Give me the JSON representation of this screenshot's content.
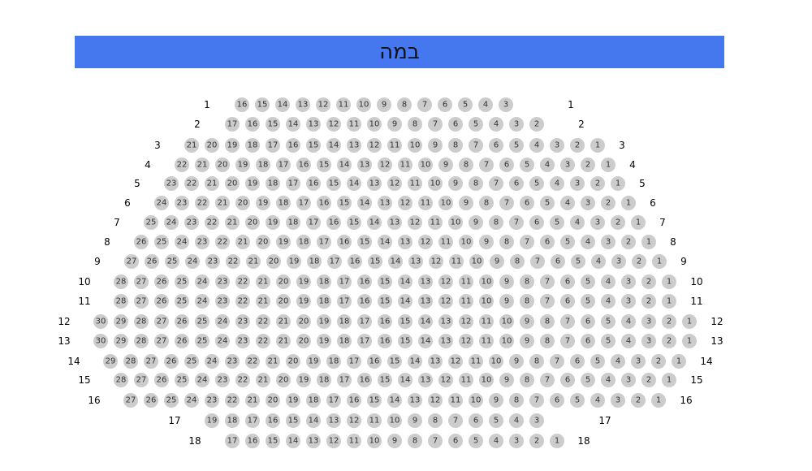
{
  "stage": {
    "label": "במה",
    "color": "#4577ee"
  },
  "seat_color": "#cccccc",
  "rows": [
    {
      "row": "1",
      "from": 16,
      "to": 3
    },
    {
      "row": "2",
      "from": 17,
      "to": 2
    },
    {
      "row": "3",
      "from": 21,
      "to": 1
    },
    {
      "row": "4",
      "from": 22,
      "to": 1
    },
    {
      "row": "5",
      "from": 23,
      "to": 1
    },
    {
      "row": "6",
      "from": 24,
      "to": 1
    },
    {
      "row": "7",
      "from": 25,
      "to": 1
    },
    {
      "row": "8",
      "from": 26,
      "to": 1
    },
    {
      "row": "9",
      "from": 27,
      "to": 1
    },
    {
      "row": "10",
      "from": 28,
      "to": 1
    },
    {
      "row": "11",
      "from": 28,
      "to": 1
    },
    {
      "row": "12",
      "from": 30,
      "to": 1
    },
    {
      "row": "13",
      "from": 30,
      "to": 1
    },
    {
      "row": "14",
      "from": 29,
      "to": 1
    },
    {
      "row": "15",
      "from": 28,
      "to": 1
    },
    {
      "row": "16",
      "from": 27,
      "to": 1
    },
    {
      "row": "17",
      "from": 19,
      "to": 3
    },
    {
      "row": "18",
      "from": 17,
      "to": 1
    }
  ]
}
